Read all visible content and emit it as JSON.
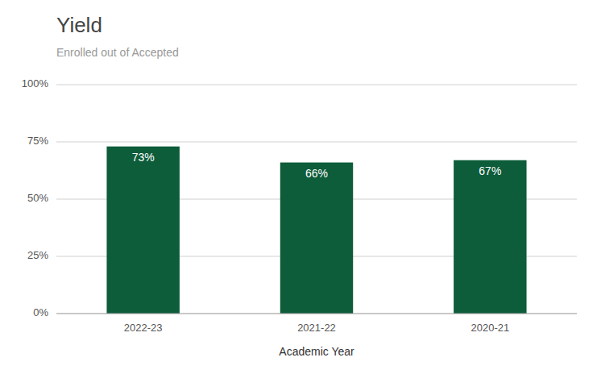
{
  "chart_data": {
    "type": "bar",
    "title": "Yield",
    "subtitle": "Enrolled out of Accepted",
    "xlabel": "Academic Year",
    "categories": [
      "2022-23",
      "2021-22",
      "2020-21"
    ],
    "values": [
      73,
      66,
      67
    ],
    "value_labels": [
      "73%",
      "66%",
      "67%"
    ],
    "data_labels": true,
    "color": "#0D5C3A",
    "ylim": [
      0,
      100
    ],
    "yticks": [
      {
        "value": 0,
        "label": "0%"
      },
      {
        "value": 25,
        "label": "25%"
      },
      {
        "value": 50,
        "label": "50%"
      },
      {
        "value": 75,
        "label": "75%"
      },
      {
        "value": 100,
        "label": "100%"
      }
    ],
    "grid": true
  }
}
